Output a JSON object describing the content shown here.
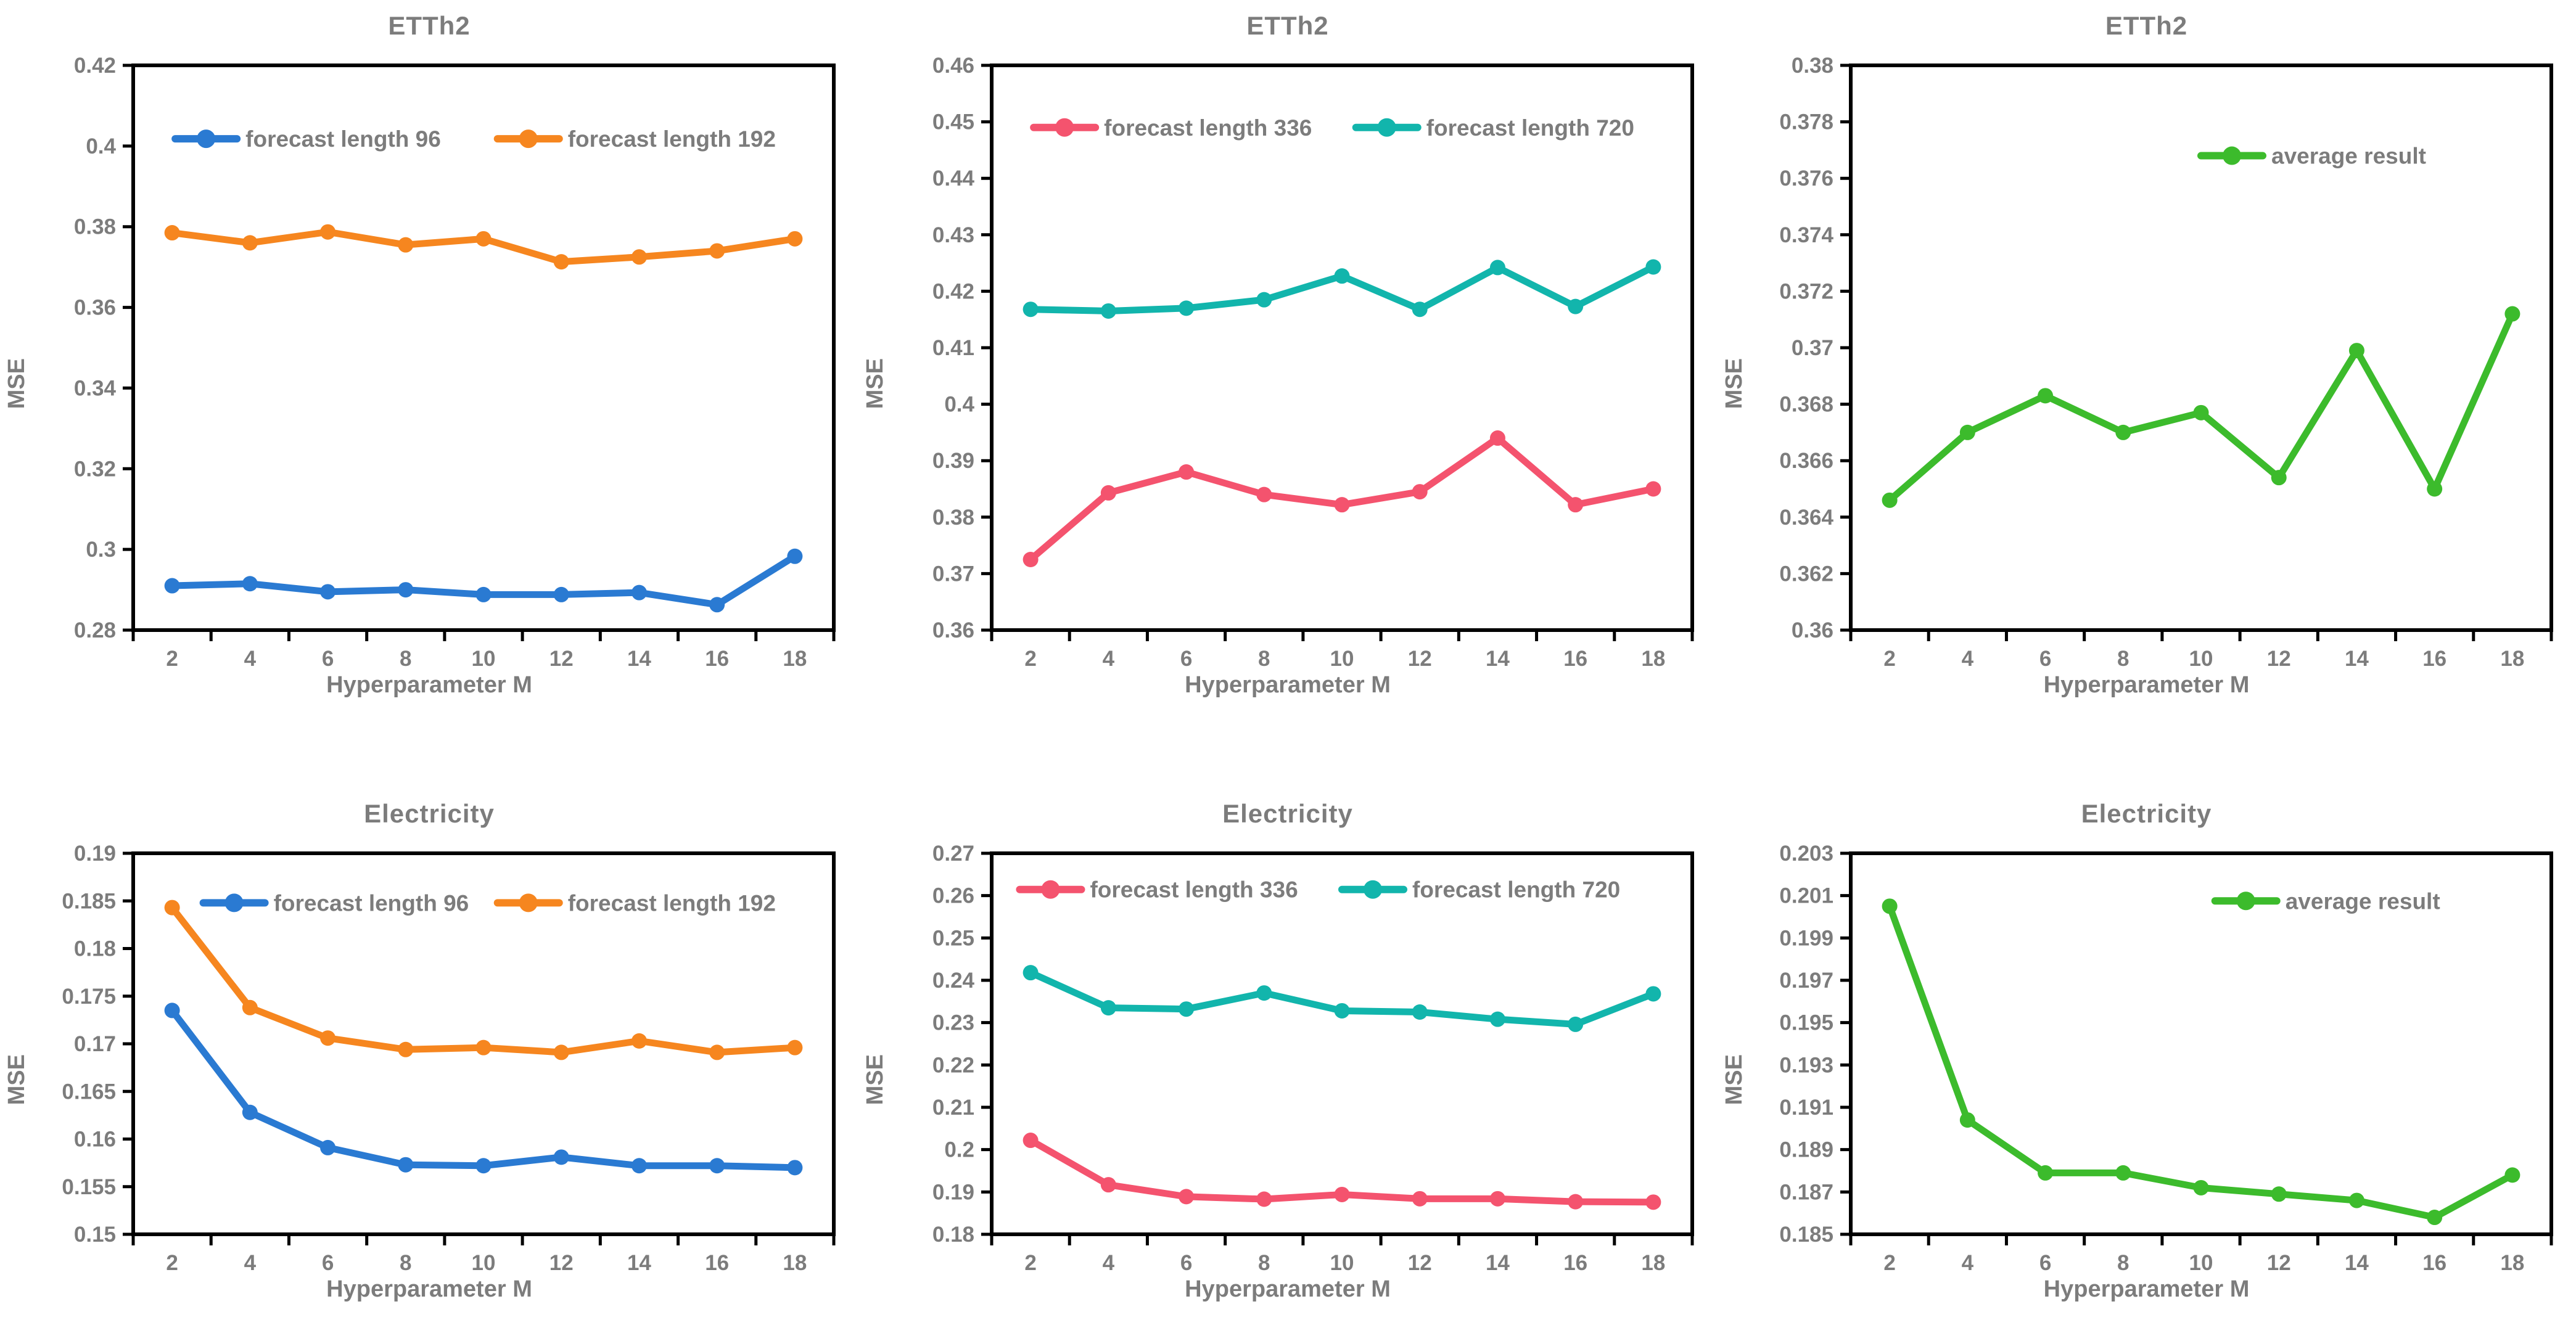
{
  "colors": {
    "axis_line": "#000000",
    "label_text": "#7c7c7c",
    "blue": "#2a7ad2",
    "orange": "#f6861f",
    "pink": "#f4536e",
    "teal": "#12b5ac",
    "green": "#3cbb2c"
  },
  "chart_data": [
    {
      "type": "line",
      "title": "ETTh2",
      "xlabel": "Hyperparameter M",
      "ylabel": "MSE",
      "x": [
        2,
        4,
        6,
        8,
        10,
        12,
        14,
        16,
        18
      ],
      "ylim": [
        0.28,
        0.42
      ],
      "ytick_step": 0.02,
      "grid": false,
      "legend_position": "inside-top",
      "legend_y": 0.13,
      "series": [
        {
          "name": "forecast length 96",
          "color": "#2a7ad2",
          "legend_x": 0.06,
          "values": [
            0.291,
            0.2915,
            0.2895,
            0.29,
            0.2888,
            0.2888,
            0.2893,
            0.2863,
            0.2983
          ]
        },
        {
          "name": "forecast length 192",
          "color": "#f6861f",
          "legend_x": 0.52,
          "values": [
            0.3785,
            0.376,
            0.3787,
            0.3755,
            0.377,
            0.3713,
            0.3725,
            0.374,
            0.377
          ]
        }
      ]
    },
    {
      "type": "line",
      "title": "ETTh2",
      "xlabel": "Hyperparameter M",
      "ylabel": "MSE",
      "x": [
        2,
        4,
        6,
        8,
        10,
        12,
        14,
        16,
        18
      ],
      "ylim": [
        0.36,
        0.46
      ],
      "ytick_step": 0.01,
      "grid": false,
      "legend_position": "inside-top",
      "legend_y": 0.11,
      "series": [
        {
          "name": "forecast length 336",
          "color": "#f4536e",
          "legend_x": 0.06,
          "values": [
            0.3725,
            0.3843,
            0.388,
            0.384,
            0.3822,
            0.3845,
            0.394,
            0.3822,
            0.385
          ]
        },
        {
          "name": "forecast length 720",
          "color": "#12b5ac",
          "legend_x": 0.52,
          "values": [
            0.4168,
            0.4165,
            0.417,
            0.4185,
            0.4227,
            0.4168,
            0.4242,
            0.4173,
            0.4243
          ]
        }
      ]
    },
    {
      "type": "line",
      "title": "ETTh2",
      "xlabel": "Hyperparameter M",
      "ylabel": "MSE",
      "x": [
        2,
        4,
        6,
        8,
        10,
        12,
        14,
        16,
        18
      ],
      "ylim": [
        0.36,
        0.38
      ],
      "ytick_step": 0.002,
      "grid": false,
      "legend_position": "inside-right",
      "legend_y": 0.16,
      "series": [
        {
          "name": "average result",
          "color": "#3cbb2c",
          "legend_x": 0.5,
          "values": [
            0.3646,
            0.367,
            0.3683,
            0.367,
            0.3677,
            0.3654,
            0.3699,
            0.365,
            0.3712
          ]
        }
      ]
    },
    {
      "type": "line",
      "title": "Electricity",
      "xlabel": "Hyperparameter M",
      "ylabel": "MSE",
      "x": [
        2,
        4,
        6,
        8,
        10,
        12,
        14,
        16,
        18
      ],
      "ylim": [
        0.15,
        0.19
      ],
      "ytick_step": 0.005,
      "grid": false,
      "legend_position": "inside-top",
      "legend_y": 0.13,
      "series": [
        {
          "name": "forecast length 96",
          "color": "#2a7ad2",
          "legend_x": 0.1,
          "values": [
            0.1735,
            0.1628,
            0.1591,
            0.1573,
            0.1572,
            0.1581,
            0.1572,
            0.1572,
            0.157
          ]
        },
        {
          "name": "forecast length 192",
          "color": "#f6861f",
          "legend_x": 0.52,
          "values": [
            0.1843,
            0.1738,
            0.1706,
            0.1694,
            0.1696,
            0.1691,
            0.1703,
            0.1691,
            0.1696
          ]
        }
      ]
    },
    {
      "type": "line",
      "title": "Electricity",
      "xlabel": "Hyperparameter M",
      "ylabel": "MSE",
      "x": [
        2,
        4,
        6,
        8,
        10,
        12,
        14,
        16,
        18
      ],
      "ylim": [
        0.18,
        0.27
      ],
      "ytick_step": 0.01,
      "grid": false,
      "legend_position": "inside-top",
      "legend_y": 0.095,
      "series": [
        {
          "name": "forecast length 336",
          "color": "#f4536e",
          "legend_x": 0.04,
          "values": [
            0.2022,
            0.1917,
            0.1889,
            0.1883,
            0.1894,
            0.1884,
            0.1884,
            0.1877,
            0.1876
          ]
        },
        {
          "name": "forecast length 720",
          "color": "#12b5ac",
          "legend_x": 0.5,
          "values": [
            0.2418,
            0.2335,
            0.2332,
            0.237,
            0.2328,
            0.2325,
            0.2308,
            0.2296,
            0.2368
          ]
        }
      ]
    },
    {
      "type": "line",
      "title": "Electricity",
      "xlabel": "Hyperparameter M",
      "ylabel": "MSE",
      "x": [
        2,
        4,
        6,
        8,
        10,
        12,
        14,
        16,
        18
      ],
      "ylim": [
        0.185,
        0.203
      ],
      "ytick_step": 0.002,
      "grid": false,
      "legend_position": "inside-right",
      "legend_y": 0.125,
      "series": [
        {
          "name": "average result",
          "color": "#3cbb2c",
          "legend_x": 0.52,
          "values": [
            0.2005,
            0.1904,
            0.1879,
            0.1879,
            0.1872,
            0.1869,
            0.1866,
            0.1858,
            0.1878
          ]
        }
      ]
    }
  ]
}
